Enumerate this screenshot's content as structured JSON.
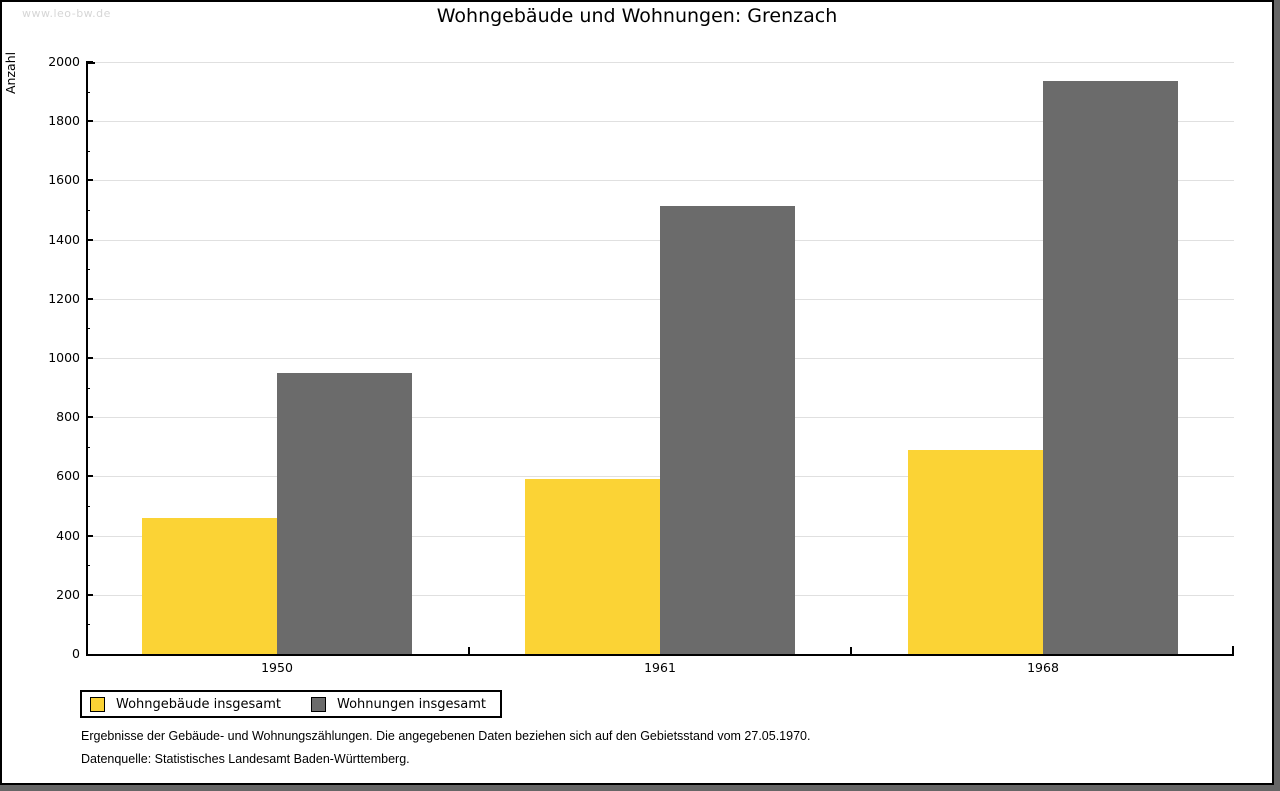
{
  "watermark": "www.leo-bw.de",
  "header": {
    "title": "Wohngebäude und Wohnungen: Grenzach"
  },
  "chart_data": {
    "type": "bar",
    "title": "Wohngebäude und Wohnungen: Grenzach",
    "categories": [
      "1950",
      "1961",
      "1968"
    ],
    "series": [
      {
        "name": "Wohngebäude insgesamt",
        "color": "#FBD335",
        "values": [
          460,
          590,
          690
        ]
      },
      {
        "name": "Wohnungen insgesamt",
        "color": "#6B6B6B",
        "values": [
          950,
          1515,
          1935
        ]
      }
    ],
    "xlabel": "",
    "ylabel": "Anzahl",
    "ylim": [
      0,
      2000
    ],
    "ytick_step": 200,
    "yminor_step": 100,
    "grid": true,
    "legend_position": "bottom-left"
  },
  "footnotes": {
    "line1": "Ergebnisse der Gebäude- und Wohnungszählungen. Die angegebenen Daten beziehen sich auf den Gebietsstand vom 27.05.1970.",
    "line2": "Datenquelle: Statistisches Landesamt Baden-Württemberg."
  },
  "colors": {
    "grid": "#E0E0E0",
    "axis": "#000000",
    "frame_shadow": "#666666",
    "watermark_text": "#D6D6D6"
  }
}
